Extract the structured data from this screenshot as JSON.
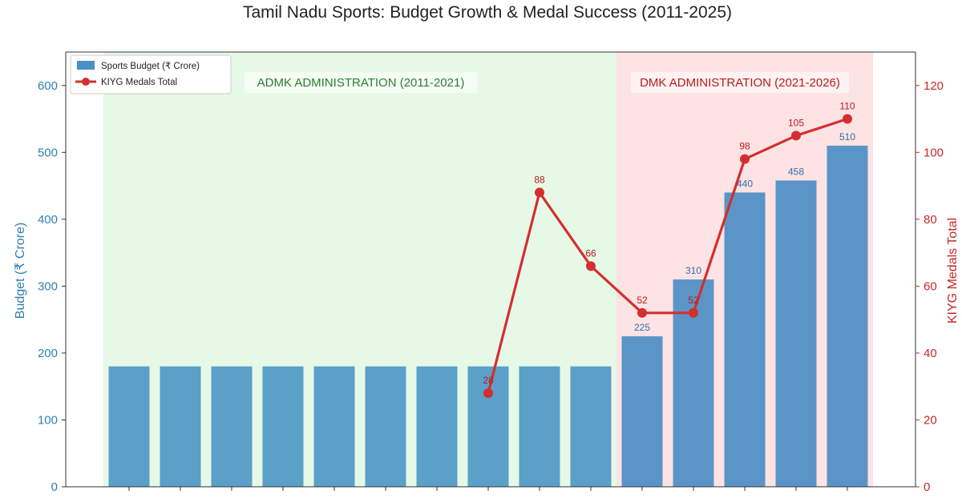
{
  "chart_data": {
    "type": "bar",
    "title": "Tamil Nadu Sports: Budget Growth & Medal Success (2011-2025)",
    "ylabel": "Budget (₹ Crore)",
    "y2label": "KIYG Medals Total",
    "ylim": [
      0,
      650
    ],
    "y2lim": [
      0,
      130
    ],
    "yticks": [
      "0",
      "100",
      "200",
      "300",
      "400",
      "500",
      "600"
    ],
    "y2ticks": [
      "0",
      "20",
      "40",
      "60",
      "80",
      "100",
      "120"
    ],
    "categories": [
      "",
      "",
      "",
      "",
      "",
      "",
      "",
      "",
      "",
      "",
      "",
      "",
      "",
      "",
      ""
    ],
    "series": [
      {
        "name": "Sports Budget (₹ Crore)",
        "kind": "bar",
        "axis": "left",
        "color": "#4a90c4",
        "values": [
          180,
          180,
          180,
          180,
          180,
          180,
          180,
          180,
          180,
          180,
          225,
          310,
          440,
          458,
          510
        ],
        "labels": [
          "",
          "",
          "",
          "",
          "",
          "",
          "",
          "",
          "",
          "",
          "225",
          "310",
          "440",
          "458",
          "510"
        ]
      },
      {
        "name": "KIYG Medals Total",
        "kind": "line",
        "axis": "right",
        "color": "#d32f2f",
        "values": [
          null,
          null,
          null,
          null,
          null,
          null,
          null,
          28,
          88,
          66,
          52,
          52,
          98,
          105,
          110
        ],
        "labels": [
          "",
          "",
          "",
          "",
          "",
          "",
          "",
          "28",
          "88",
          "66",
          "52",
          "52",
          "98",
          "105",
          "110"
        ]
      }
    ],
    "regions": [
      {
        "label": "ADMK ADMINISTRATION (2011-2021)",
        "from_index": 0,
        "to_index": 9,
        "fill": "#e6f9e6",
        "text_color": "#2e7d32"
      },
      {
        "label": "DMK ADMINISTRATION (2021-2026)",
        "from_index": 10,
        "to_index": 14,
        "fill": "#fde3e3",
        "text_color": "#b71c1c"
      }
    ],
    "legend_position": "top-left",
    "grid": false
  }
}
